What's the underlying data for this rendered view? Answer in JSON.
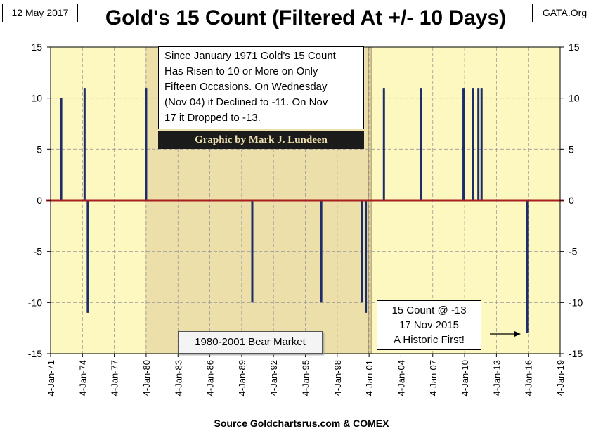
{
  "header": {
    "date": "12 May 2017",
    "title": "Gold's 15 Count (Filtered At +/- 10 Days)",
    "source_tag": "GATA.Org"
  },
  "footer": {
    "source": "Source Goldchartsrus.com & COMEX"
  },
  "annotations": {
    "note_lines": [
      "Since January 1971 Gold's 15 Count",
      "Has Risen to 10 or More on Only",
      "Fifteen Occasions.  On Wednesday",
      "(Nov 04) it Declined to -11.  On Nov",
      "17 it Dropped to -13."
    ],
    "credit": "Graphic by Mark J. Lundeen",
    "bear_market": "1980-2001 Bear Market",
    "callout_lines": [
      "15 Count @ -13",
      "17 Nov 2015",
      "A Historic First!"
    ]
  },
  "colors": {
    "plot_background": "#fdf8c0",
    "bear_shade": "#ecdfa9",
    "bar": "#1f2c6a",
    "zero_line": "#a81f1f",
    "grid": "#9a9a9a"
  },
  "chart_data": {
    "type": "bar",
    "title": "Gold's 15 Count (Filtered At +/- 10 Days)",
    "xlabel": "",
    "ylabel": "",
    "x_axis": "time (years)",
    "x_range": [
      1971.0,
      2019.0
    ],
    "ylim": [
      -15,
      15
    ],
    "y_ticks": [
      -15,
      -10,
      -5,
      0,
      5,
      10,
      15
    ],
    "x_ticks": [
      1971,
      1974,
      1977,
      1980,
      1983,
      1986,
      1989,
      1992,
      1995,
      1998,
      2001,
      2004,
      2007,
      2010,
      2013,
      2016,
      2019
    ],
    "x_tick_labels": [
      "4-Jan-71",
      "4-Jan-74",
      "4-Jan-77",
      "4-Jan-80",
      "4-Jan-83",
      "4-Jan-86",
      "4-Jan-89",
      "4-Jan-92",
      "4-Jan-95",
      "4-Jan-98",
      "4-Jan-01",
      "4-Jan-04",
      "4-Jan-07",
      "4-Jan-10",
      "4-Jan-13",
      "4-Jan-16",
      "4-Jan-19"
    ],
    "gridlines": true,
    "shaded_region": {
      "label": "1980-2001 Bear Market",
      "from": 1979.9,
      "to": 2001.2
    },
    "series": [
      {
        "name": "15 Count",
        "points": [
          {
            "x": 1972.0,
            "y": 10
          },
          {
            "x": 1974.2,
            "y": 11
          },
          {
            "x": 1974.5,
            "y": -11
          },
          {
            "x": 1980.0,
            "y": 11
          },
          {
            "x": 1990.0,
            "y": -10
          },
          {
            "x": 1996.5,
            "y": -10
          },
          {
            "x": 2000.3,
            "y": -10
          },
          {
            "x": 2000.7,
            "y": -11
          },
          {
            "x": 2002.4,
            "y": 11
          },
          {
            "x": 2005.9,
            "y": 11
          },
          {
            "x": 2009.9,
            "y": 11
          },
          {
            "x": 2010.8,
            "y": 11
          },
          {
            "x": 2011.3,
            "y": 11
          },
          {
            "x": 2011.6,
            "y": 11
          },
          {
            "x": 2015.9,
            "y": -13
          }
        ]
      }
    ]
  }
}
